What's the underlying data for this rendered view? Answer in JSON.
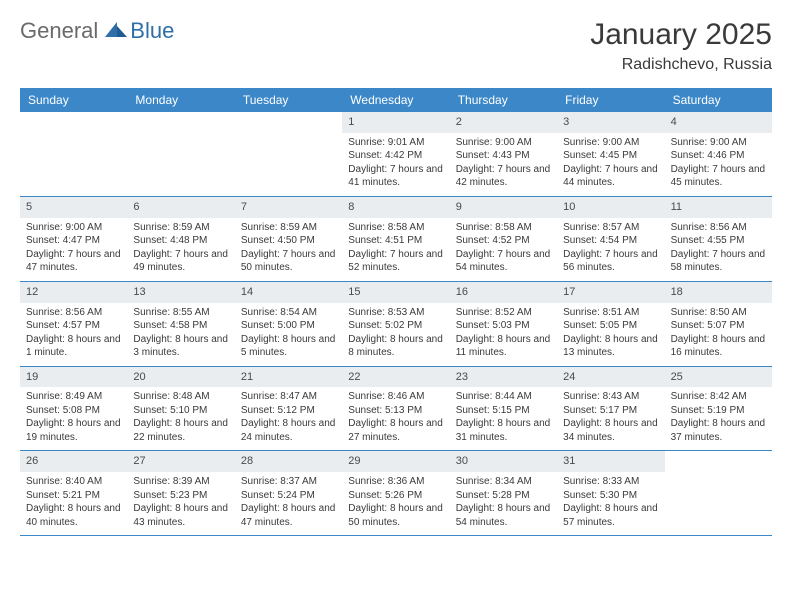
{
  "brand": {
    "text_general": "General",
    "text_blue": "Blue"
  },
  "title": "January 2025",
  "location": "Radishchevo, Russia",
  "colors": {
    "header_bg": "#3b87c8",
    "header_text": "#ffffff",
    "datebar_bg": "#e9edf0",
    "text": "#3a3a3a",
    "rule": "#3b87c8"
  },
  "day_names": [
    "Sunday",
    "Monday",
    "Tuesday",
    "Wednesday",
    "Thursday",
    "Friday",
    "Saturday"
  ],
  "weeks": [
    [
      null,
      null,
      null,
      {
        "date": "1",
        "sunrise": "Sunrise: 9:01 AM",
        "sunset": "Sunset: 4:42 PM",
        "daylight": "Daylight: 7 hours and 41 minutes."
      },
      {
        "date": "2",
        "sunrise": "Sunrise: 9:00 AM",
        "sunset": "Sunset: 4:43 PM",
        "daylight": "Daylight: 7 hours and 42 minutes."
      },
      {
        "date": "3",
        "sunrise": "Sunrise: 9:00 AM",
        "sunset": "Sunset: 4:45 PM",
        "daylight": "Daylight: 7 hours and 44 minutes."
      },
      {
        "date": "4",
        "sunrise": "Sunrise: 9:00 AM",
        "sunset": "Sunset: 4:46 PM",
        "daylight": "Daylight: 7 hours and 45 minutes."
      }
    ],
    [
      {
        "date": "5",
        "sunrise": "Sunrise: 9:00 AM",
        "sunset": "Sunset: 4:47 PM",
        "daylight": "Daylight: 7 hours and 47 minutes."
      },
      {
        "date": "6",
        "sunrise": "Sunrise: 8:59 AM",
        "sunset": "Sunset: 4:48 PM",
        "daylight": "Daylight: 7 hours and 49 minutes."
      },
      {
        "date": "7",
        "sunrise": "Sunrise: 8:59 AM",
        "sunset": "Sunset: 4:50 PM",
        "daylight": "Daylight: 7 hours and 50 minutes."
      },
      {
        "date": "8",
        "sunrise": "Sunrise: 8:58 AM",
        "sunset": "Sunset: 4:51 PM",
        "daylight": "Daylight: 7 hours and 52 minutes."
      },
      {
        "date": "9",
        "sunrise": "Sunrise: 8:58 AM",
        "sunset": "Sunset: 4:52 PM",
        "daylight": "Daylight: 7 hours and 54 minutes."
      },
      {
        "date": "10",
        "sunrise": "Sunrise: 8:57 AM",
        "sunset": "Sunset: 4:54 PM",
        "daylight": "Daylight: 7 hours and 56 minutes."
      },
      {
        "date": "11",
        "sunrise": "Sunrise: 8:56 AM",
        "sunset": "Sunset: 4:55 PM",
        "daylight": "Daylight: 7 hours and 58 minutes."
      }
    ],
    [
      {
        "date": "12",
        "sunrise": "Sunrise: 8:56 AM",
        "sunset": "Sunset: 4:57 PM",
        "daylight": "Daylight: 8 hours and 1 minute."
      },
      {
        "date": "13",
        "sunrise": "Sunrise: 8:55 AM",
        "sunset": "Sunset: 4:58 PM",
        "daylight": "Daylight: 8 hours and 3 minutes."
      },
      {
        "date": "14",
        "sunrise": "Sunrise: 8:54 AM",
        "sunset": "Sunset: 5:00 PM",
        "daylight": "Daylight: 8 hours and 5 minutes."
      },
      {
        "date": "15",
        "sunrise": "Sunrise: 8:53 AM",
        "sunset": "Sunset: 5:02 PM",
        "daylight": "Daylight: 8 hours and 8 minutes."
      },
      {
        "date": "16",
        "sunrise": "Sunrise: 8:52 AM",
        "sunset": "Sunset: 5:03 PM",
        "daylight": "Daylight: 8 hours and 11 minutes."
      },
      {
        "date": "17",
        "sunrise": "Sunrise: 8:51 AM",
        "sunset": "Sunset: 5:05 PM",
        "daylight": "Daylight: 8 hours and 13 minutes."
      },
      {
        "date": "18",
        "sunrise": "Sunrise: 8:50 AM",
        "sunset": "Sunset: 5:07 PM",
        "daylight": "Daylight: 8 hours and 16 minutes."
      }
    ],
    [
      {
        "date": "19",
        "sunrise": "Sunrise: 8:49 AM",
        "sunset": "Sunset: 5:08 PM",
        "daylight": "Daylight: 8 hours and 19 minutes."
      },
      {
        "date": "20",
        "sunrise": "Sunrise: 8:48 AM",
        "sunset": "Sunset: 5:10 PM",
        "daylight": "Daylight: 8 hours and 22 minutes."
      },
      {
        "date": "21",
        "sunrise": "Sunrise: 8:47 AM",
        "sunset": "Sunset: 5:12 PM",
        "daylight": "Daylight: 8 hours and 24 minutes."
      },
      {
        "date": "22",
        "sunrise": "Sunrise: 8:46 AM",
        "sunset": "Sunset: 5:13 PM",
        "daylight": "Daylight: 8 hours and 27 minutes."
      },
      {
        "date": "23",
        "sunrise": "Sunrise: 8:44 AM",
        "sunset": "Sunset: 5:15 PM",
        "daylight": "Daylight: 8 hours and 31 minutes."
      },
      {
        "date": "24",
        "sunrise": "Sunrise: 8:43 AM",
        "sunset": "Sunset: 5:17 PM",
        "daylight": "Daylight: 8 hours and 34 minutes."
      },
      {
        "date": "25",
        "sunrise": "Sunrise: 8:42 AM",
        "sunset": "Sunset: 5:19 PM",
        "daylight": "Daylight: 8 hours and 37 minutes."
      }
    ],
    [
      {
        "date": "26",
        "sunrise": "Sunrise: 8:40 AM",
        "sunset": "Sunset: 5:21 PM",
        "daylight": "Daylight: 8 hours and 40 minutes."
      },
      {
        "date": "27",
        "sunrise": "Sunrise: 8:39 AM",
        "sunset": "Sunset: 5:23 PM",
        "daylight": "Daylight: 8 hours and 43 minutes."
      },
      {
        "date": "28",
        "sunrise": "Sunrise: 8:37 AM",
        "sunset": "Sunset: 5:24 PM",
        "daylight": "Daylight: 8 hours and 47 minutes."
      },
      {
        "date": "29",
        "sunrise": "Sunrise: 8:36 AM",
        "sunset": "Sunset: 5:26 PM",
        "daylight": "Daylight: 8 hours and 50 minutes."
      },
      {
        "date": "30",
        "sunrise": "Sunrise: 8:34 AM",
        "sunset": "Sunset: 5:28 PM",
        "daylight": "Daylight: 8 hours and 54 minutes."
      },
      {
        "date": "31",
        "sunrise": "Sunrise: 8:33 AM",
        "sunset": "Sunset: 5:30 PM",
        "daylight": "Daylight: 8 hours and 57 minutes."
      },
      null
    ]
  ]
}
